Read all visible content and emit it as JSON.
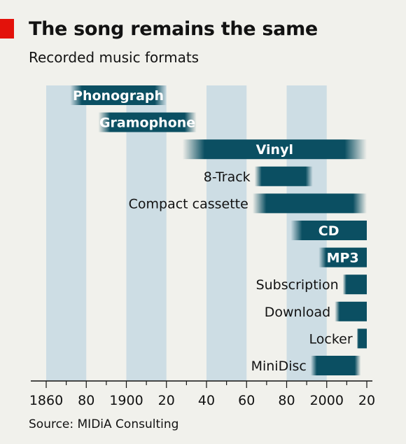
{
  "header": {
    "title": "The song remains the same",
    "subtitle": "Recorded music formats"
  },
  "footer": {
    "source": "Source: MIDiA Consulting"
  },
  "colors": {
    "background": "#f1f1ec",
    "band": "#cddde4",
    "bar": "#0b4f62",
    "accent": "#e3120b",
    "axis": "#121212"
  },
  "chart_data": {
    "type": "bar",
    "orientation": "horizontal-range",
    "xlim": [
      1860,
      2020
    ],
    "x_ticks": [
      1860,
      1880,
      1900,
      1920,
      1940,
      1960,
      1980,
      2000,
      2020
    ],
    "x_tick_labels": [
      "1860",
      "80",
      "1900",
      "20",
      "40",
      "60",
      "80",
      "2000",
      "20"
    ],
    "shaded_bands": [
      [
        1860,
        1880
      ],
      [
        1900,
        1920
      ],
      [
        1940,
        1960
      ],
      [
        1980,
        2000
      ]
    ],
    "bars_fade_at_edges": true,
    "series": [
      {
        "name": "Phonograph",
        "start": 1872,
        "end": 1920,
        "label_inside": true
      },
      {
        "name": "Gramophone",
        "start": 1886,
        "end": 1935,
        "label_inside": true
      },
      {
        "name": "Vinyl",
        "start": 1928,
        "end": 2020,
        "label_inside": true
      },
      {
        "name": "8-Track",
        "start": 1964,
        "end": 1993,
        "label_inside": false
      },
      {
        "name": "Compact cassette",
        "start": 1963,
        "end": 2020,
        "label_inside": false
      },
      {
        "name": "CD",
        "start": 1982,
        "end": 2020,
        "label_inside": true
      },
      {
        "name": "MP3",
        "start": 1996,
        "end": 2020,
        "label_inside": true
      },
      {
        "name": "Subscription",
        "start": 2008,
        "end": 2020,
        "label_inside": false
      },
      {
        "name": "Download",
        "start": 2004,
        "end": 2020,
        "label_inside": false
      },
      {
        "name": "Locker",
        "start": 2015,
        "end": 2020,
        "label_inside": false
      },
      {
        "name": "MiniDisc",
        "start": 1992,
        "end": 2017,
        "label_inside": false
      }
    ]
  }
}
